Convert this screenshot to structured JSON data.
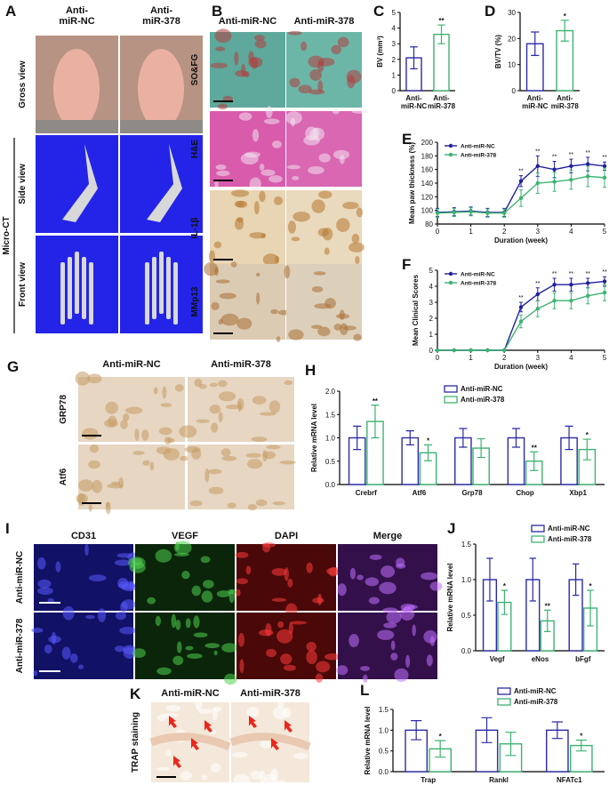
{
  "panels": {
    "A": {
      "label": "A",
      "columns": [
        "Anti-miR-NC",
        "Anti-miR-378"
      ],
      "rows": [
        "Gross view",
        "Side view",
        "Front view"
      ],
      "group": "Micro-CT"
    },
    "B": {
      "label": "B",
      "columns": [
        "Anti-miR-NC",
        "Anti-miR-378"
      ],
      "rows": [
        "SO&FG",
        "H&E",
        "IL-1β",
        "MMp13"
      ]
    },
    "G": {
      "label": "G",
      "columns": [
        "Anti-miR-NC",
        "Anti-miR-378"
      ],
      "rows": [
        "GRP78",
        "Atf6"
      ]
    },
    "I": {
      "label": "I",
      "columns": [
        "CD31",
        "VEGF",
        "DAPI",
        "Merge"
      ],
      "rows": [
        "Anti-miR-NC",
        "Anti-miR-378"
      ]
    },
    "K": {
      "label": "K",
      "columns": [
        "Anti-miR-NC",
        "Anti-miR-378"
      ],
      "rows": [
        "TRAP staining"
      ]
    }
  },
  "charts": {
    "C": {
      "type": "bar",
      "label": "C",
      "ylabel": "BV (mm³)",
      "categories": [
        "Anti-miR-NC",
        "Anti-miR-378"
      ],
      "values": [
        2.1,
        3.6
      ],
      "errors": [
        0.7,
        0.6
      ],
      "colors": [
        "#2a2aa8",
        "#3cb371"
      ],
      "ylim": [
        0,
        5
      ],
      "yticks": [
        0,
        1,
        2,
        3,
        4,
        5
      ],
      "annotations": [
        {
          "index": 1,
          "text": "**"
        }
      ]
    },
    "D": {
      "type": "bar",
      "label": "D",
      "ylabel": "BV/TV (%)",
      "categories": [
        "Anti-miR-NC",
        "Anti-miR-378"
      ],
      "values": [
        18,
        23
      ],
      "errors": [
        4.5,
        4
      ],
      "colors": [
        "#2a2aa8",
        "#3cb371"
      ],
      "ylim": [
        0,
        30
      ],
      "yticks": [
        0,
        10,
        20,
        30
      ],
      "annotations": [
        {
          "index": 1,
          "text": "*"
        }
      ]
    },
    "E": {
      "type": "line",
      "label": "E",
      "ylabel": "Mean paw thickness (%)",
      "xlabel": "Duration (week)",
      "x": [
        0,
        0.5,
        1,
        1.5,
        2,
        2.5,
        3,
        3.5,
        4,
        4.5,
        5
      ],
      "series": [
        {
          "name": "Anti-miR-NC",
          "color": "#1f1f9e",
          "values": [
            97,
            98,
            99,
            97,
            97,
            143,
            165,
            160,
            165,
            168,
            165
          ],
          "errors": [
            6,
            6,
            6,
            6,
            6,
            8,
            15,
            12,
            10,
            10,
            6
          ]
        },
        {
          "name": "Anti-miR-378",
          "color": "#3cb371",
          "values": [
            96,
            97,
            98,
            96,
            96,
            118,
            140,
            142,
            145,
            150,
            148
          ],
          "errors": [
            6,
            6,
            6,
            6,
            6,
            12,
            15,
            14,
            14,
            15,
            14
          ]
        }
      ],
      "xlim": [
        0,
        5
      ],
      "xticks": [
        0,
        1,
        2,
        3,
        4,
        5
      ],
      "ylim": [
        80,
        200
      ],
      "yticks": [
        80,
        100,
        120,
        140,
        160,
        180,
        200
      ],
      "annotations": [
        {
          "x": 2.5,
          "text": "**"
        },
        {
          "x": 3,
          "text": "**"
        },
        {
          "x": 3.5,
          "text": "**"
        },
        {
          "x": 4,
          "text": "**"
        },
        {
          "x": 4.5,
          "text": "**"
        },
        {
          "x": 5,
          "text": "**"
        }
      ]
    },
    "F": {
      "type": "line",
      "label": "F",
      "ylabel": "Mean Clinical Scores",
      "xlabel": "Duration (week)",
      "x": [
        0,
        0.5,
        1,
        1.5,
        2,
        2.5,
        3,
        3.5,
        4,
        4.5,
        5
      ],
      "series": [
        {
          "name": "Anti-miR-NC",
          "color": "#1f1f9e",
          "values": [
            0,
            0,
            0,
            0,
            0,
            2.7,
            3.5,
            4.1,
            4.1,
            4.2,
            4.3
          ],
          "errors": [
            0,
            0,
            0,
            0,
            0,
            0.3,
            0.4,
            0.4,
            0.4,
            0.3,
            0.3
          ]
        },
        {
          "name": "Anti-miR-378",
          "color": "#3cb371",
          "values": [
            0,
            0,
            0,
            0,
            0,
            1.8,
            2.6,
            3.1,
            3.1,
            3.4,
            3.6
          ],
          "errors": [
            0,
            0,
            0,
            0,
            0,
            0.4,
            0.5,
            0.5,
            0.5,
            0.5,
            0.5
          ]
        }
      ],
      "xlim": [
        0,
        5
      ],
      "xticks": [
        0,
        1,
        2,
        3,
        4,
        5
      ],
      "ylim": [
        0,
        5
      ],
      "yticks": [
        0,
        1,
        2,
        3,
        4,
        5
      ],
      "annotations": [
        {
          "x": 2.5,
          "text": "**"
        },
        {
          "x": 3,
          "text": "**"
        },
        {
          "x": 3.5,
          "text": "**"
        },
        {
          "x": 4,
          "text": "**"
        },
        {
          "x": 4.5,
          "text": "**"
        },
        {
          "x": 5,
          "text": "**"
        }
      ]
    },
    "H": {
      "type": "grouped_bar",
      "label": "H",
      "ylabel": "Relative mRNA level",
      "categories": [
        "Crebrf",
        "Atf6",
        "Grp78",
        "Chop",
        "Xbp1"
      ],
      "series": [
        {
          "name": "Anti-miR-NC",
          "color": "#2a2aa8",
          "values": [
            1,
            1,
            1,
            1,
            1
          ],
          "errors": [
            0.25,
            0.15,
            0.2,
            0.2,
            0.25
          ]
        },
        {
          "name": "Anti-miR-378",
          "color": "#3cb371",
          "values": [
            1.35,
            0.68,
            0.78,
            0.5,
            0.75
          ],
          "errors": [
            0.35,
            0.17,
            0.2,
            0.2,
            0.22
          ]
        }
      ],
      "ylim": [
        0,
        2
      ],
      "yticks": [
        {
          "value": 0,
          "label": "0.0"
        },
        0.5,
        {
          "value": 1,
          "label": "1.0"
        },
        1.5,
        {
          "value": 2,
          "label": "2.0"
        }
      ],
      "annotations": [
        {
          "index": 0,
          "text": "**"
        },
        {
          "index": 1,
          "text": "*"
        },
        {
          "index": 3,
          "text": "**"
        },
        {
          "index": 4,
          "text": "*"
        }
      ]
    },
    "J": {
      "type": "grouped_bar",
      "label": "J",
      "ylabel": "Relative mRNA level",
      "categories": [
        "Vegf",
        "eNos",
        "bFgf"
      ],
      "series": [
        {
          "name": "Anti-miR-NC",
          "color": "#2a2aa8",
          "values": [
            1,
            1,
            1
          ],
          "errors": [
            0.3,
            0.3,
            0.22
          ]
        },
        {
          "name": "Anti-miR-378",
          "color": "#3cb371",
          "values": [
            0.68,
            0.42,
            0.6
          ],
          "errors": [
            0.17,
            0.15,
            0.25
          ]
        }
      ],
      "ylim": [
        0,
        1.5
      ],
      "yticks": [
        {
          "value": 0,
          "label": "0.0"
        },
        0.5,
        {
          "value": 1,
          "label": "1.0"
        },
        1.5
      ],
      "annotations": [
        {
          "index": 0,
          "text": "*"
        },
        {
          "index": 1,
          "text": "**"
        },
        {
          "index": 2,
          "text": "*"
        }
      ]
    },
    "L": {
      "type": "grouped_bar",
      "label": "L",
      "ylabel": "Relative mRNA level",
      "categories": [
        "Trap",
        "Rankl",
        "NFATc1"
      ],
      "series": [
        {
          "name": "Anti-miR-NC",
          "color": "#2a2aa8",
          "values": [
            1,
            1,
            1
          ],
          "errors": [
            0.23,
            0.3,
            0.2
          ]
        },
        {
          "name": "Anti-miR-378",
          "color": "#3cb371",
          "values": [
            0.55,
            0.67,
            0.63
          ],
          "errors": [
            0.2,
            0.28,
            0.13
          ]
        }
      ],
      "ylim": [
        0,
        1.5
      ],
      "yticks": [
        {
          "value": 0,
          "label": "0.0"
        },
        0.5,
        {
          "value": 1,
          "label": "1.0"
        },
        1.5
      ],
      "annotations": [
        {
          "index": 0,
          "text": "*"
        },
        {
          "index": 2,
          "text": "*"
        }
      ]
    }
  }
}
